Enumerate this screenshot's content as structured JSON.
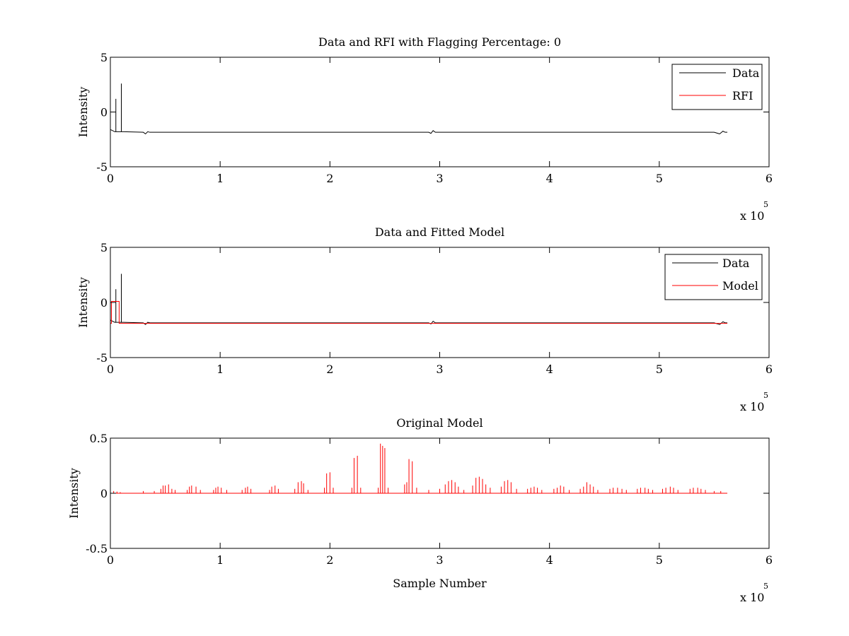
{
  "figure": {
    "background": "#ffffff",
    "axis_color": "#000000"
  },
  "chart_data": [
    {
      "type": "line",
      "title": "Data and RFI with Flagging Percentage: 0",
      "xlabel": "",
      "ylabel": "Intensity",
      "xlim": [
        0,
        600000
      ],
      "ylim": [
        -5,
        5
      ],
      "xticks": [
        0,
        100000,
        200000,
        300000,
        400000,
        500000,
        600000
      ],
      "xtick_labels": [
        "0",
        "1",
        "2",
        "3",
        "4",
        "5",
        "6"
      ],
      "yticks": [
        -5,
        0,
        5
      ],
      "ytick_labels": [
        "-5",
        "0",
        "5"
      ],
      "x_multiplier": {
        "base": "x 10",
        "exponent": "5"
      },
      "grid": false,
      "legend": {
        "position": "top-right",
        "entries": [
          "Data",
          "RFI"
        ]
      },
      "series": [
        {
          "name": "Data",
          "color": "#000000",
          "x": [
            0,
            2000,
            4000,
            5000,
            5000,
            5000,
            7000,
            9000,
            10000,
            10000,
            10000,
            12000,
            30000,
            32000,
            34000,
            36000,
            60000,
            100000,
            150000,
            200000,
            250000,
            290000,
            292000,
            294000,
            296000,
            300000,
            350000,
            400000,
            450000,
            500000,
            550000,
            555000,
            558000,
            560000,
            562000
          ],
          "y": [
            -1.6,
            -1.7,
            -1.8,
            -1.8,
            1.2,
            -1.8,
            -1.8,
            -1.8,
            -1.8,
            2.6,
            -1.8,
            -1.8,
            -1.85,
            -2.0,
            -1.8,
            -1.85,
            -1.85,
            -1.85,
            -1.85,
            -1.85,
            -1.85,
            -1.85,
            -1.95,
            -1.7,
            -1.85,
            -1.85,
            -1.85,
            -1.85,
            -1.85,
            -1.85,
            -1.85,
            -2.0,
            -1.75,
            -1.85,
            -1.85
          ]
        },
        {
          "name": "RFI",
          "color": "#ff0000",
          "x": [],
          "y": []
        }
      ]
    },
    {
      "type": "line",
      "title": "Data and Fitted Model",
      "xlabel": "",
      "ylabel": "Intensity",
      "xlim": [
        0,
        600000
      ],
      "ylim": [
        -5,
        5
      ],
      "xticks": [
        0,
        100000,
        200000,
        300000,
        400000,
        500000,
        600000
      ],
      "xtick_labels": [
        "0",
        "1",
        "2",
        "3",
        "4",
        "5",
        "6"
      ],
      "yticks": [
        -5,
        0,
        5
      ],
      "ytick_labels": [
        "-5",
        "0",
        "5"
      ],
      "x_multiplier": {
        "base": "x 10",
        "exponent": "5"
      },
      "grid": false,
      "legend": {
        "position": "top-right",
        "entries": [
          "Data",
          "Model"
        ]
      },
      "series": [
        {
          "name": "Data",
          "color": "#000000",
          "x": [
            0,
            2000,
            4000,
            5000,
            5000,
            5000,
            7000,
            9000,
            10000,
            10000,
            10000,
            12000,
            30000,
            32000,
            34000,
            36000,
            60000,
            100000,
            150000,
            200000,
            250000,
            290000,
            292000,
            294000,
            296000,
            300000,
            350000,
            400000,
            450000,
            500000,
            550000,
            555000,
            558000,
            560000,
            562000
          ],
          "y": [
            -1.6,
            -1.7,
            -1.8,
            -1.8,
            1.2,
            -1.8,
            -1.8,
            -1.8,
            -1.8,
            2.6,
            -1.8,
            -1.8,
            -1.85,
            -2.0,
            -1.8,
            -1.85,
            -1.85,
            -1.85,
            -1.85,
            -1.85,
            -1.85,
            -1.85,
            -1.95,
            -1.7,
            -1.85,
            -1.85,
            -1.85,
            -1.85,
            -1.85,
            -1.85,
            -1.85,
            -2.0,
            -1.75,
            -1.85,
            -1.85
          ]
        },
        {
          "name": "Model",
          "color": "#ff0000",
          "x": [
            0,
            1000,
            1000,
            8000,
            8000,
            9500,
            9500,
            30000,
            100000,
            200000,
            300000,
            400000,
            500000,
            562000
          ],
          "y": [
            -1.9,
            -1.9,
            0.1,
            0.1,
            -1.9,
            -1.9,
            -1.9,
            -1.9,
            -1.9,
            -1.9,
            -1.9,
            -1.9,
            -1.9,
            -1.9
          ]
        }
      ]
    },
    {
      "type": "line",
      "title": "Original Model",
      "xlabel": "Sample Number",
      "ylabel": "Intensity",
      "xlim": [
        0,
        600000
      ],
      "ylim": [
        -0.5,
        0.5
      ],
      "xticks": [
        0,
        100000,
        200000,
        300000,
        400000,
        500000,
        600000
      ],
      "xtick_labels": [
        "0",
        "1",
        "2",
        "3",
        "4",
        "5",
        "6"
      ],
      "yticks": [
        -0.5,
        0,
        0.5
      ],
      "ytick_labels": [
        "-0.5",
        "0",
        "0.5"
      ],
      "x_multiplier": {
        "base": "x 10",
        "exponent": "5"
      },
      "grid": false,
      "legend": null,
      "series": [
        {
          "name": "",
          "color": "#ff0000",
          "baseline": {
            "x": [
              0,
              562000
            ],
            "y": [
              0,
              0
            ]
          },
          "spikes": [
            [
              3000,
              0.02
            ],
            [
              6000,
              0.015
            ],
            [
              9000,
              0.01
            ],
            [
              30000,
              0.02
            ],
            [
              40000,
              0.02
            ],
            [
              46000,
              0.04
            ],
            [
              48000,
              0.07
            ],
            [
              50000,
              0.07
            ],
            [
              53000,
              0.08
            ],
            [
              56000,
              0.04
            ],
            [
              59000,
              0.03
            ],
            [
              70000,
              0.03
            ],
            [
              72000,
              0.06
            ],
            [
              74000,
              0.07
            ],
            [
              78000,
              0.06
            ],
            [
              82000,
              0.03
            ],
            [
              94000,
              0.03
            ],
            [
              96000,
              0.05
            ],
            [
              98000,
              0.06
            ],
            [
              101000,
              0.05
            ],
            [
              106000,
              0.03
            ],
            [
              120000,
              0.03
            ],
            [
              123000,
              0.05
            ],
            [
              125000,
              0.06
            ],
            [
              128000,
              0.04
            ],
            [
              145000,
              0.03
            ],
            [
              147000,
              0.06
            ],
            [
              150000,
              0.07
            ],
            [
              153000,
              0.04
            ],
            [
              168000,
              0.04
            ],
            [
              171000,
              0.1
            ],
            [
              174000,
              0.11
            ],
            [
              176000,
              0.09
            ],
            [
              180000,
              0.03
            ],
            [
              195000,
              0.05
            ],
            [
              197000,
              0.18
            ],
            [
              200000,
              0.19
            ],
            [
              203000,
              0.05
            ],
            [
              220000,
              0.05
            ],
            [
              222000,
              0.32
            ],
            [
              225000,
              0.34
            ],
            [
              228000,
              0.05
            ],
            [
              244000,
              0.05
            ],
            [
              246000,
              0.45
            ],
            [
              248000,
              0.43
            ],
            [
              250000,
              0.41
            ],
            [
              253000,
              0.05
            ],
            [
              268000,
              0.08
            ],
            [
              270000,
              0.1
            ],
            [
              272000,
              0.31
            ],
            [
              275000,
              0.29
            ],
            [
              279000,
              0.05
            ],
            [
              290000,
              0.03
            ],
            [
              300000,
              0.04
            ],
            [
              305000,
              0.08
            ],
            [
              308000,
              0.11
            ],
            [
              311000,
              0.12
            ],
            [
              314000,
              0.1
            ],
            [
              317000,
              0.06
            ],
            [
              322000,
              0.03
            ],
            [
              330000,
              0.07
            ],
            [
              333000,
              0.14
            ],
            [
              336000,
              0.15
            ],
            [
              339000,
              0.13
            ],
            [
              342000,
              0.08
            ],
            [
              346000,
              0.05
            ],
            [
              356000,
              0.06
            ],
            [
              359000,
              0.11
            ],
            [
              362000,
              0.12
            ],
            [
              365000,
              0.1
            ],
            [
              370000,
              0.04
            ],
            [
              380000,
              0.04
            ],
            [
              383000,
              0.05
            ],
            [
              386000,
              0.06
            ],
            [
              389000,
              0.05
            ],
            [
              393000,
              0.03
            ],
            [
              404000,
              0.04
            ],
            [
              407000,
              0.05
            ],
            [
              410000,
              0.07
            ],
            [
              413000,
              0.06
            ],
            [
              418000,
              0.03
            ],
            [
              428000,
              0.04
            ],
            [
              431000,
              0.06
            ],
            [
              434000,
              0.1
            ],
            [
              437000,
              0.08
            ],
            [
              440000,
              0.06
            ],
            [
              444000,
              0.03
            ],
            [
              455000,
              0.04
            ],
            [
              458000,
              0.05
            ],
            [
              462000,
              0.05
            ],
            [
              466000,
              0.04
            ],
            [
              470000,
              0.03
            ],
            [
              480000,
              0.04
            ],
            [
              483000,
              0.05
            ],
            [
              487000,
              0.05
            ],
            [
              490000,
              0.04
            ],
            [
              494000,
              0.03
            ],
            [
              503000,
              0.04
            ],
            [
              506000,
              0.05
            ],
            [
              510000,
              0.06
            ],
            [
              513000,
              0.05
            ],
            [
              517000,
              0.03
            ],
            [
              528000,
              0.04
            ],
            [
              531000,
              0.05
            ],
            [
              535000,
              0.05
            ],
            [
              538000,
              0.04
            ],
            [
              542000,
              0.03
            ],
            [
              550000,
              0.02
            ],
            [
              556000,
              0.02
            ]
          ]
        }
      ]
    }
  ]
}
